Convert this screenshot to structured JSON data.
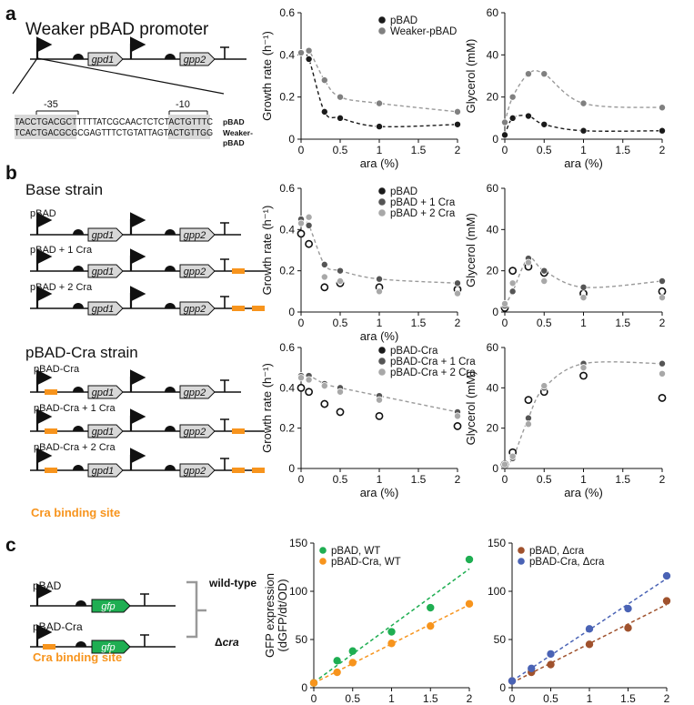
{
  "panel_labels": [
    "a",
    "b",
    "c"
  ],
  "a": {
    "title": "Weaker pBAD promoter",
    "genes": [
      "gpd1",
      "gpp2"
    ],
    "seq_top": "TACCTGACGCTTTTTATCGCAACTCTCTACTGTTTC",
    "seq_bottom": "TCACTGACGCGCGAGTTTCTGTATTAGTACTGTTGG",
    "box_minus35": "-35",
    "box_minus10": "-10",
    "seq_label_top": "pBAD",
    "seq_label_bottom_1": "Weaker-",
    "seq_label_bottom_2": "pBAD"
  },
  "b": {
    "base_title": "Base strain",
    "cra_title": "pBAD-Cra strain",
    "base_constructs": [
      "pBAD",
      "pBAD + 1 Cra",
      "pBAD + 2 Cra"
    ],
    "cra_constructs": [
      "pBAD-Cra",
      "pBAD-Cra + 1 Cra",
      "pBAD-Cra + 2 Cra"
    ],
    "binding_label": "Cra binding site",
    "genes": [
      "gpd1",
      "gpp2"
    ]
  },
  "c": {
    "constructs": [
      "pBAD",
      "pBAD-Cra"
    ],
    "gene": "gfp",
    "binding_label": "Cra binding site",
    "bracket_top": "wild-type",
    "bracket_bottom_prefix": "Δ",
    "bracket_bottom_italic": "cra"
  },
  "colors": {
    "orange": "#f7941d",
    "green": "#1fae52",
    "brown": "#a0522d",
    "blue": "#4a63b5",
    "black": "#1a1a1a",
    "grey": "#808080",
    "lightgrey": "#a8a8a8",
    "boxfill": "#d8d8d8"
  },
  "chart_data": [
    {
      "id": "a_growth",
      "type": "scatter",
      "xlabel": "ara (%)",
      "ylabel": "Growth rate (h⁻¹)",
      "xlim": [
        0,
        2
      ],
      "ylim": [
        0,
        0.6
      ],
      "xticks": [
        "0",
        "0.5",
        "1",
        "1.5",
        "2"
      ],
      "yticks": [
        "0",
        "0.2",
        "0.4",
        "0.6"
      ],
      "x": [
        0,
        0.1,
        0.3,
        0.5,
        1,
        2
      ],
      "series": [
        {
          "name": "pBAD",
          "color": "#1a1a1a",
          "values": [
            0.41,
            0.38,
            0.13,
            0.1,
            0.06,
            0.07
          ]
        },
        {
          "name": "Weaker-pBAD",
          "color": "#808080",
          "values": [
            0.41,
            0.42,
            0.28,
            0.2,
            0.17,
            0.13
          ]
        }
      ]
    },
    {
      "id": "a_glycerol",
      "type": "scatter",
      "xlabel": "ara (%)",
      "ylabel": "Glycerol (mM)",
      "xlim": [
        0,
        2
      ],
      "ylim": [
        0,
        60
      ],
      "xticks": [
        "0",
        "0.5",
        "1",
        "1.5",
        "2"
      ],
      "yticks": [
        "0",
        "20",
        "40",
        "60"
      ],
      "x": [
        0,
        0.1,
        0.3,
        0.5,
        1,
        2
      ],
      "series": [
        {
          "name": "pBAD",
          "color": "#1a1a1a",
          "values": [
            2,
            10,
            11,
            7,
            4,
            4
          ]
        },
        {
          "name": "Weaker-pBAD",
          "color": "#808080",
          "values": [
            8,
            20,
            31,
            31,
            17,
            15
          ]
        }
      ]
    },
    {
      "id": "b_base_growth",
      "type": "scatter",
      "xlabel": "ara (%)",
      "ylabel": "Growth rate (h⁻¹)",
      "xlim": [
        0,
        2
      ],
      "ylim": [
        0,
        0.6
      ],
      "xticks": [
        "0",
        "0.5",
        "1",
        "1.5",
        "2"
      ],
      "yticks": [
        "0",
        "0.2",
        "0.4",
        "0.6"
      ],
      "x": [
        0,
        0.1,
        0.3,
        0.5,
        1,
        2
      ],
      "series": [
        {
          "name": "pBAD",
          "color": "#1a1a1a",
          "values": [
            0.38,
            0.33,
            0.12,
            0.14,
            0.12,
            0.11
          ]
        },
        {
          "name": "pBAD + 1 Cra",
          "color": "#555555",
          "values": [
            0.45,
            0.42,
            0.23,
            0.2,
            0.16,
            0.14
          ]
        },
        {
          "name": "pBAD + 2 Cra",
          "color": "#a8a8a8",
          "values": [
            0.43,
            0.46,
            0.17,
            0.15,
            0.1,
            0.09
          ]
        }
      ]
    },
    {
      "id": "b_base_glycerol",
      "type": "scatter",
      "xlabel": "",
      "ylabel": "Glycerol (mM)",
      "xlim": [
        0,
        2
      ],
      "ylim": [
        0,
        60
      ],
      "xticks": [
        "0",
        "0.5",
        "1",
        "1.5",
        "2"
      ],
      "yticks": [
        "0",
        "20",
        "40",
        "60"
      ],
      "x": [
        0,
        0.1,
        0.3,
        0.5,
        1,
        2
      ],
      "series": [
        {
          "name": "pBAD",
          "color": "#1a1a1a",
          "values": [
            2,
            20,
            22,
            19,
            9,
            10
          ]
        },
        {
          "name": "pBAD + 1 Cra",
          "color": "#555555",
          "values": [
            3,
            10,
            26,
            20,
            12,
            15
          ]
        },
        {
          "name": "pBAD + 2 Cra",
          "color": "#a8a8a8",
          "values": [
            4,
            14,
            24,
            15,
            7,
            7
          ]
        }
      ]
    },
    {
      "id": "b_cra_growth",
      "type": "scatter",
      "xlabel": "ara (%)",
      "ylabel": "Growth rate (h⁻¹)",
      "xlim": [
        0,
        2
      ],
      "ylim": [
        0,
        0.6
      ],
      "xticks": [
        "0",
        "0.5",
        "1",
        "1.5",
        "2"
      ],
      "yticks": [
        "0",
        "0.2",
        "0.4",
        "0.6"
      ],
      "x": [
        0,
        0.1,
        0.3,
        0.5,
        1,
        2
      ],
      "series": [
        {
          "name": "pBAD-Cra",
          "color": "#1a1a1a",
          "values": [
            0.4,
            0.38,
            0.32,
            0.28,
            0.26,
            0.21
          ]
        },
        {
          "name": "pBAD-Cra + 1 Cra",
          "color": "#555555",
          "values": [
            0.46,
            0.46,
            0.42,
            0.4,
            0.36,
            0.28
          ]
        },
        {
          "name": "pBAD-Cra + 2 Cra",
          "color": "#a8a8a8",
          "values": [
            0.45,
            0.44,
            0.41,
            0.38,
            0.34,
            0.26
          ]
        }
      ]
    },
    {
      "id": "b_cra_glycerol",
      "type": "scatter",
      "xlabel": "ara (%)",
      "ylabel": "Glycerol (mM)",
      "xlim": [
        0,
        2
      ],
      "ylim": [
        0,
        60
      ],
      "xticks": [
        "0",
        "0.5",
        "1",
        "1.5",
        "2"
      ],
      "yticks": [
        "0",
        "20",
        "40",
        "60"
      ],
      "x": [
        0,
        0.1,
        0.3,
        0.5,
        1,
        2
      ],
      "series": [
        {
          "name": "pBAD-Cra",
          "color": "#1a1a1a",
          "values": [
            2,
            8,
            34,
            38,
            46,
            35
          ]
        },
        {
          "name": "pBAD-Cra + 1 Cra",
          "color": "#555555",
          "values": [
            2,
            5,
            25,
            40,
            52,
            52
          ]
        },
        {
          "name": "pBAD-Cra + 2 Cra",
          "color": "#a8a8a8",
          "values": [
            2,
            6,
            22,
            41,
            50,
            47
          ]
        }
      ]
    },
    {
      "id": "c_wt",
      "type": "scatter",
      "xlabel": "ara (%)",
      "ylabel": "GFP expression",
      "ylabel2": "(dGFP/dt/OD)",
      "xlim": [
        0,
        2
      ],
      "ylim": [
        0,
        150
      ],
      "xticks": [
        "0",
        "0.5",
        "1",
        "1.5",
        "2"
      ],
      "yticks": [
        "0",
        "50",
        "100",
        "150"
      ],
      "x": [
        0,
        0.3,
        0.5,
        1,
        1.5,
        2
      ],
      "series": [
        {
          "name": "pBAD, WT",
          "color": "#1fae52",
          "values": [
            5,
            28,
            38,
            58,
            83,
            133
          ]
        },
        {
          "name": "pBAD-Cra, WT",
          "color": "#f7941d",
          "values": [
            5,
            16,
            26,
            46,
            64,
            87
          ]
        }
      ]
    },
    {
      "id": "c_dcra",
      "type": "scatter",
      "xlabel": "ara (%)",
      "ylabel": "",
      "xlim": [
        0,
        2
      ],
      "ylim": [
        0,
        150
      ],
      "xticks": [
        "0",
        "0.5",
        "1",
        "1.5",
        "2"
      ],
      "yticks": [
        "0",
        "50",
        "100",
        "150"
      ],
      "x": [
        0,
        0.25,
        0.5,
        1,
        1.5,
        2
      ],
      "series": [
        {
          "name": "pBAD, Δcra",
          "color": "#a0522d",
          "values": [
            7,
            16,
            24,
            45,
            62,
            90
          ]
        },
        {
          "name": "pBAD-Cra, Δcra",
          "color": "#4a63b5",
          "values": [
            7,
            20,
            35,
            61,
            82,
            116
          ]
        }
      ]
    }
  ]
}
